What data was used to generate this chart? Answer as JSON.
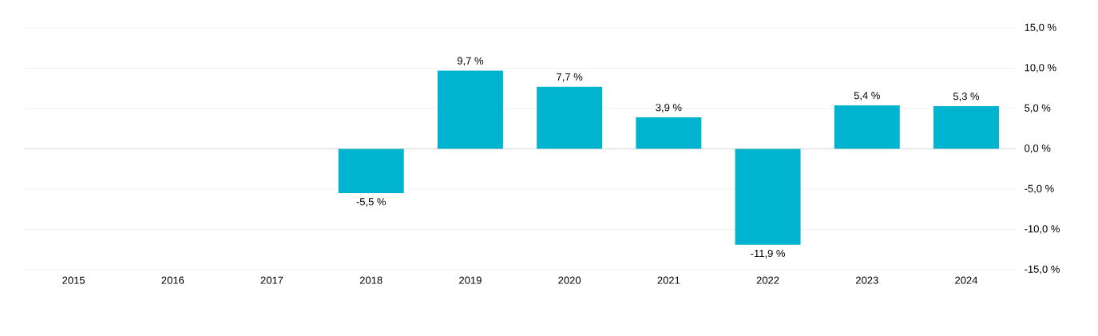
{
  "chart_data": {
    "type": "bar",
    "categories": [
      "2015",
      "2016",
      "2017",
      "2018",
      "2019",
      "2020",
      "2021",
      "2022",
      "2023",
      "2024"
    ],
    "values": [
      null,
      null,
      null,
      -5.5,
      9.7,
      7.7,
      3.9,
      -11.9,
      5.4,
      5.3
    ],
    "value_labels": [
      null,
      null,
      null,
      "-5,5 %",
      "9,7 %",
      "7,7 %",
      "3,9 %",
      "-11,9 %",
      "5,4 %",
      "5,3 %"
    ],
    "color": "#00b4d0",
    "ylim": [
      -15,
      15
    ],
    "yticks": [
      {
        "value": -15,
        "label": "-15,0 %"
      },
      {
        "value": -10,
        "label": "-10,0 %"
      },
      {
        "value": -5,
        "label": "-5,0 %"
      },
      {
        "value": 0,
        "label": "0,0 %"
      },
      {
        "value": 5,
        "label": "5,0 %"
      },
      {
        "value": 10,
        "label": "10,0 %"
      },
      {
        "value": 15,
        "label": "15,0 %"
      }
    ],
    "grid": "y"
  }
}
